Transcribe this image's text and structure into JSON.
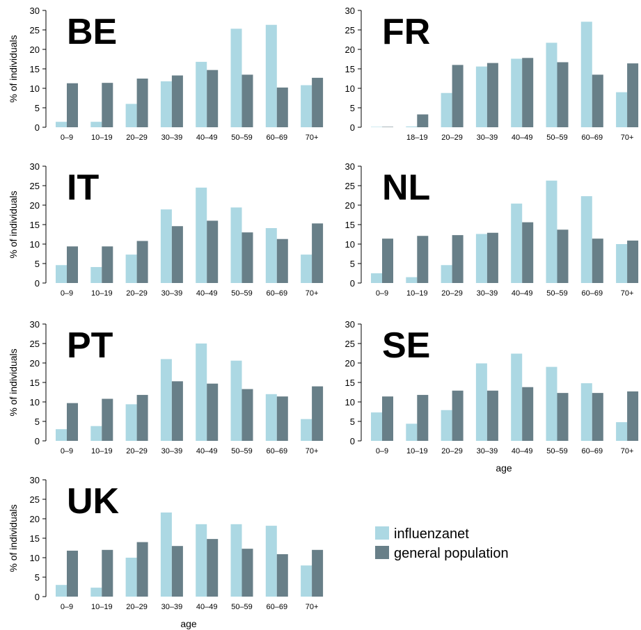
{
  "colors": {
    "influenzanet": "#acd8e3",
    "general_population": "#687f88",
    "axis": "#000000"
  },
  "legend": {
    "items": [
      {
        "label": "influenzanet"
      },
      {
        "label": "general population"
      }
    ]
  },
  "chart_data": [
    {
      "type": "bar",
      "title": "BE",
      "xlabel": "",
      "ylabel": "% of individuals",
      "ylim": [
        0,
        30
      ],
      "yticks": [
        0,
        5,
        10,
        15,
        20,
        25,
        30
      ],
      "categories": [
        "0–9",
        "10–19",
        "20–29",
        "30–39",
        "40–49",
        "50–59",
        "60–69",
        "70+"
      ],
      "series": [
        {
          "name": "influenzanet",
          "values": [
            1.4,
            1.4,
            6.0,
            11.8,
            16.8,
            25.3,
            26.3,
            10.8
          ]
        },
        {
          "name": "general population",
          "values": [
            11.3,
            11.4,
            12.5,
            13.3,
            14.7,
            13.5,
            10.2,
            12.7
          ]
        }
      ]
    },
    {
      "type": "bar",
      "title": "FR",
      "xlabel": "",
      "ylabel": "",
      "ylim": [
        0,
        30
      ],
      "yticks": [
        0,
        5,
        10,
        15,
        20,
        25,
        30
      ],
      "categories": [
        "",
        "18–19",
        "20–29",
        "30–39",
        "40–49",
        "50–59",
        "60–69",
        "70+"
      ],
      "series": [
        {
          "name": "influenzanet",
          "values": [
            0.1,
            0.2,
            8.8,
            15.6,
            17.6,
            21.7,
            27.1,
            9.0
          ]
        },
        {
          "name": "general population",
          "values": [
            0.1,
            3.3,
            16.0,
            16.5,
            17.8,
            16.7,
            13.5,
            16.4
          ]
        }
      ]
    },
    {
      "type": "bar",
      "title": "IT",
      "xlabel": "",
      "ylabel": "% of individuals",
      "ylim": [
        0,
        30
      ],
      "yticks": [
        0,
        5,
        10,
        15,
        20,
        25,
        30
      ],
      "categories": [
        "0–9",
        "10–19",
        "20–29",
        "30–39",
        "40–49",
        "50–59",
        "60–69",
        "70+"
      ],
      "series": [
        {
          "name": "influenzanet",
          "values": [
            4.6,
            4.1,
            7.3,
            18.9,
            24.5,
            19.4,
            14.1,
            7.3
          ]
        },
        {
          "name": "general population",
          "values": [
            9.4,
            9.4,
            10.8,
            14.6,
            16.0,
            13.0,
            11.3,
            15.3
          ]
        }
      ]
    },
    {
      "type": "bar",
      "title": "NL",
      "xlabel": "",
      "ylabel": "",
      "ylim": [
        0,
        30
      ],
      "yticks": [
        0,
        5,
        10,
        15,
        20,
        25,
        30
      ],
      "categories": [
        "0–9",
        "10–19",
        "20–29",
        "30–39",
        "40–49",
        "50–59",
        "60–69",
        "70+"
      ],
      "series": [
        {
          "name": "influenzanet",
          "values": [
            2.5,
            1.5,
            4.6,
            12.6,
            20.4,
            26.3,
            22.3,
            10.0
          ]
        },
        {
          "name": "general population",
          "values": [
            11.4,
            12.1,
            12.3,
            12.9,
            15.6,
            13.7,
            11.4,
            10.9
          ]
        }
      ]
    },
    {
      "type": "bar",
      "title": "PT",
      "xlabel": "",
      "ylabel": "% of individuals",
      "ylim": [
        0,
        30
      ],
      "yticks": [
        0,
        5,
        10,
        15,
        20,
        25,
        30
      ],
      "categories": [
        "0–9",
        "10–19",
        "20–29",
        "30–39",
        "40–49",
        "50–59",
        "60–69",
        "70+"
      ],
      "series": [
        {
          "name": "influenzanet",
          "values": [
            3.0,
            3.8,
            9.4,
            21.0,
            25.0,
            20.6,
            12.0,
            5.6
          ]
        },
        {
          "name": "general population",
          "values": [
            9.7,
            10.8,
            11.8,
            15.3,
            14.7,
            13.3,
            11.4,
            14.0
          ]
        }
      ]
    },
    {
      "type": "bar",
      "title": "SE",
      "xlabel": "age",
      "ylabel": "",
      "ylim": [
        0,
        30
      ],
      "yticks": [
        0,
        5,
        10,
        15,
        20,
        25,
        30
      ],
      "categories": [
        "0–9",
        "10–19",
        "20–29",
        "30–39",
        "40–49",
        "50–59",
        "60–69",
        "70+"
      ],
      "series": [
        {
          "name": "influenzanet",
          "values": [
            7.3,
            4.4,
            7.9,
            19.9,
            22.4,
            19.0,
            14.8,
            4.8
          ]
        },
        {
          "name": "general population",
          "values": [
            11.4,
            11.8,
            12.9,
            12.9,
            13.8,
            12.3,
            12.3,
            12.7
          ]
        }
      ]
    },
    {
      "type": "bar",
      "title": "UK",
      "xlabel": "age",
      "ylabel": "% of individuals",
      "ylim": [
        0,
        30
      ],
      "yticks": [
        0,
        5,
        10,
        15,
        20,
        25,
        30
      ],
      "categories": [
        "0–9",
        "10–19",
        "20–29",
        "30–39",
        "40–49",
        "50–59",
        "60–69",
        "70+"
      ],
      "series": [
        {
          "name": "influenzanet",
          "values": [
            3.0,
            2.3,
            10.0,
            21.6,
            18.6,
            18.6,
            18.2,
            8.0
          ]
        },
        {
          "name": "general population",
          "values": [
            11.8,
            12.0,
            14.0,
            13.0,
            14.8,
            12.3,
            10.9,
            12.0
          ]
        }
      ]
    }
  ]
}
